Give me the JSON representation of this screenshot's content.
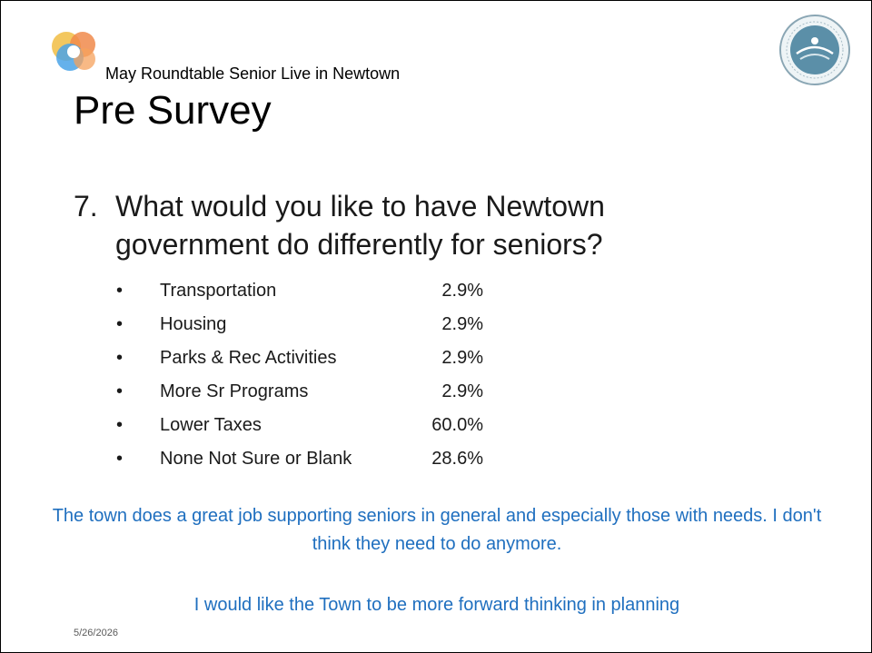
{
  "header": {
    "subtitle": "May Roundtable Senior Live in Newtown",
    "title": "Pre Survey"
  },
  "question": {
    "number": "7.",
    "text": "What would you like to have Newtown government do differently for seniors?"
  },
  "items": [
    {
      "label": "Transportation",
      "value": "2.9%"
    },
    {
      "label": "Housing",
      "value": "2.9%"
    },
    {
      "label": "Parks & Rec Activities",
      "value": "2.9%"
    },
    {
      "label": "More Sr Programs",
      "value": "2.9%"
    },
    {
      "label": "Lower Taxes",
      "value": "60.0%"
    },
    {
      "label": "None  Not Sure or Blank",
      "value": "28.6%"
    }
  ],
  "comments": [
    "The town does a great job supporting seniors in general and especially those with needs. I don't think they need to do anymore.",
    "I would like the Town to be more forward thinking in planning"
  ],
  "footer": {
    "date": "5/26/2026"
  },
  "icons": {
    "app_logo": "app-logo-icon",
    "seal": "friends-of-newtown-seniors-seal",
    "bullet": "bullet-dot"
  },
  "colors": {
    "comment_text": "#1f6fbf",
    "body_text": "#1a1a1a",
    "seal_blue": "#5b8fa8"
  }
}
